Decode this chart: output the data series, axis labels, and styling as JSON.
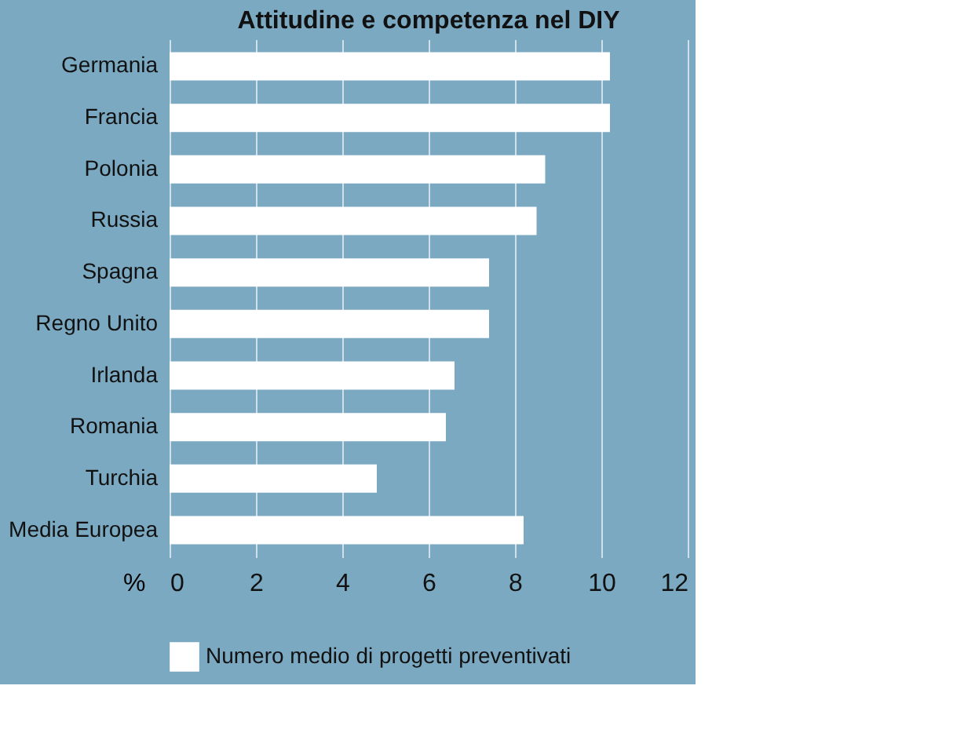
{
  "chart_data": {
    "type": "bar",
    "orientation": "horizontal",
    "title": "Attitudine e competenza nel DIY",
    "xlabel": "%",
    "categories": [
      "Germania",
      "Francia",
      "Polonia",
      "Russia",
      "Spagna",
      "Regno Unito",
      "Irlanda",
      "Romania",
      "Turchia",
      "Media Europea"
    ],
    "series": [
      {
        "name": "Numero medio di progetti preventivati",
        "color": "#ffffff",
        "values": [
          10.2,
          10.2,
          8.7,
          8.5,
          7.4,
          7.4,
          6.6,
          6.4,
          4.8,
          8.2
        ]
      }
    ],
    "xlim": [
      0,
      12
    ],
    "xticks": [
      0,
      2,
      4,
      6,
      8,
      10,
      12
    ],
    "grid": "x",
    "legend": "bottom"
  }
}
